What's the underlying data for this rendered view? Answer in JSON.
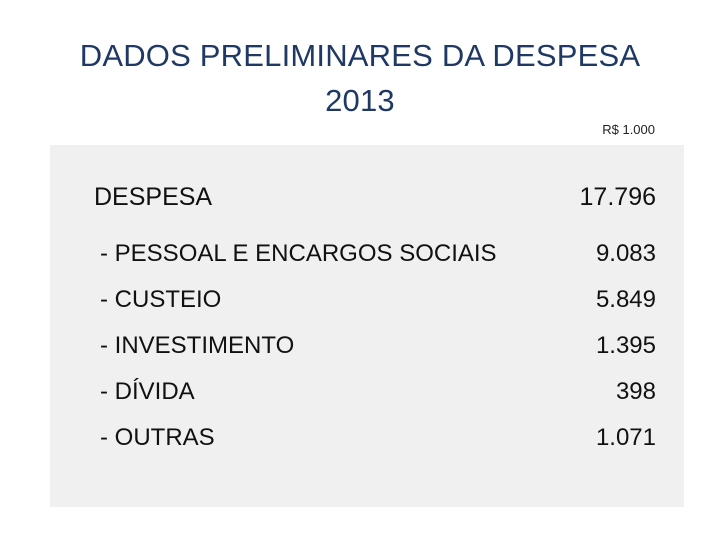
{
  "title": {
    "line1": "DADOS PRELIMINARES DA DESPESA",
    "line2": "2013"
  },
  "unit": "R$ 1.000",
  "total": {
    "label": "DESPESA",
    "value": "17.796"
  },
  "items": [
    {
      "label": "- PESSOAL E ENCARGOS SOCIAIS",
      "value": "9.083"
    },
    {
      "label": "- CUSTEIO",
      "value": "5.849"
    },
    {
      "label": "- INVESTIMENTO",
      "value": "1.395"
    },
    {
      "label": "- DÍVIDA",
      "value": "398"
    },
    {
      "label": "- OUTRAS",
      "value": "1.071"
    }
  ],
  "colors": {
    "title": "#1f3864",
    "panel": "#f0f0f0"
  }
}
